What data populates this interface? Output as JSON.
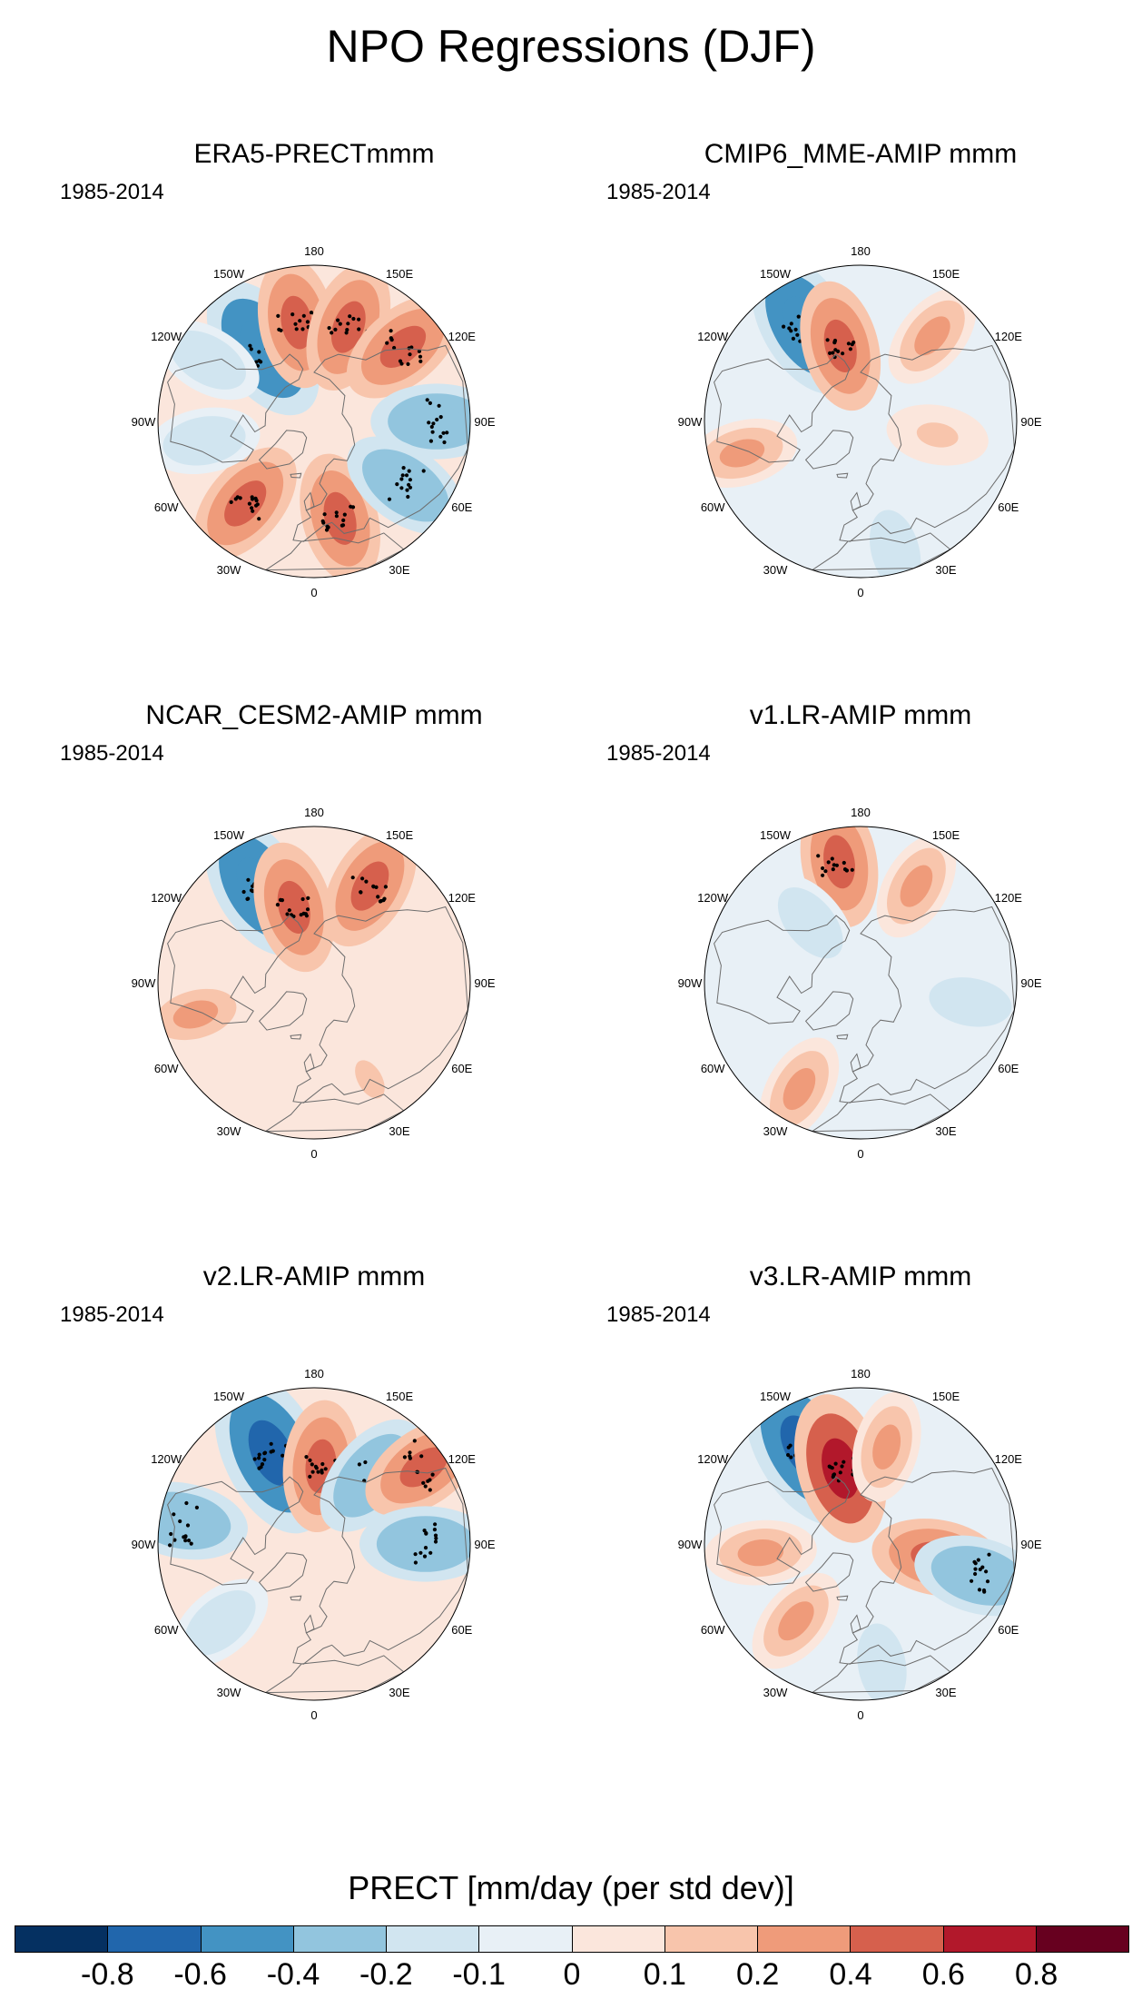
{
  "figure_title": "NPO Regressions (DJF)",
  "lon_labels": [
    "180",
    "150E",
    "120E",
    "90E",
    "60E",
    "30E",
    "0",
    "30W",
    "60W",
    "90W",
    "120W",
    "150W"
  ],
  "panels": [
    {
      "title": "ERA5-PRECTmmm",
      "years": "1985-2014",
      "anomalies": [
        {
          "type": "neg",
          "level": -0.6,
          "lon": -145,
          "lat": 50
        },
        {
          "type": "pos",
          "level": 0.4,
          "lon": -170,
          "lat": 45
        },
        {
          "type": "pos",
          "level": 0.4,
          "lon": 160,
          "lat": 45
        },
        {
          "type": "pos",
          "level": 0.4,
          "lon": 130,
          "lat": 38
        },
        {
          "type": "neg",
          "level": -0.4,
          "lon": 90,
          "lat": 35
        },
        {
          "type": "pos",
          "level": 0.4,
          "lon": -40,
          "lat": 42
        },
        {
          "type": "pos",
          "level": 0.4,
          "lon": 15,
          "lat": 45
        },
        {
          "type": "neg",
          "level": -0.4,
          "lon": 55,
          "lat": 40
        },
        {
          "type": "neg",
          "level": -0.2,
          "lon": -80,
          "lat": 40
        },
        {
          "type": "neg",
          "level": -0.2,
          "lon": -120,
          "lat": 35
        }
      ]
    },
    {
      "title": "CMIP6_MME-AMIP  mmm",
      "years": "1985-2014",
      "anomalies": [
        {
          "type": "neg",
          "level": -0.6,
          "lon": -150,
          "lat": 40
        },
        {
          "type": "pos",
          "level": 0.4,
          "lon": -165,
          "lat": 55
        },
        {
          "type": "pos",
          "level": 0.2,
          "lon": 140,
          "lat": 40
        },
        {
          "type": "pos",
          "level": 0.2,
          "lon": -75,
          "lat": 35
        },
        {
          "type": "pos",
          "level": 0.1,
          "lon": 80,
          "lat": 55
        },
        {
          "type": "neg",
          "level": -0.2,
          "lon": 15,
          "lat": 30
        }
      ]
    },
    {
      "title": "NCAR_CESM2-AMIP  mmm",
      "years": "1985-2014",
      "anomalies": [
        {
          "type": "neg",
          "level": -0.6,
          "lon": -150,
          "lat": 40
        },
        {
          "type": "pos",
          "level": 0.4,
          "lon": -165,
          "lat": 55
        },
        {
          "type": "pos",
          "level": 0.4,
          "lon": 150,
          "lat": 40
        },
        {
          "type": "pos",
          "level": 0.2,
          "lon": -75,
          "lat": 35
        },
        {
          "type": "pos",
          "level": 0.1,
          "lon": 30,
          "lat": 40
        }
      ]
    },
    {
      "title": "v1.LR-AMIP  mmm",
      "years": "1985-2014",
      "anomalies": [
        {
          "type": "pos",
          "level": 0.4,
          "lon": -170,
          "lat": 35
        },
        {
          "type": "pos",
          "level": 0.2,
          "lon": 150,
          "lat": 40
        },
        {
          "type": "neg",
          "level": -0.2,
          "lon": -140,
          "lat": 55
        },
        {
          "type": "pos",
          "level": 0.2,
          "lon": -30,
          "lat": 35
        },
        {
          "type": "neg",
          "level": -0.2,
          "lon": 80,
          "lat": 40
        }
      ]
    },
    {
      "title": "v2.LR-AMIP  mmm",
      "years": "1985-2014",
      "anomalies": [
        {
          "type": "neg",
          "level": -0.8,
          "lon": -155,
          "lat": 45
        },
        {
          "type": "pos",
          "level": 0.4,
          "lon": 175,
          "lat": 55
        },
        {
          "type": "neg",
          "level": -0.4,
          "lon": 140,
          "lat": 50
        },
        {
          "type": "pos",
          "level": 0.4,
          "lon": 125,
          "lat": 30
        },
        {
          "type": "neg",
          "level": -0.4,
          "lon": -100,
          "lat": 30
        },
        {
          "type": "neg",
          "level": -0.4,
          "lon": 90,
          "lat": 40
        },
        {
          "type": "neg",
          "level": -0.2,
          "lon": -50,
          "lat": 35
        }
      ]
    },
    {
      "title": "v3.LR-AMIP  mmm",
      "years": "1985-2014",
      "anomalies": [
        {
          "type": "neg",
          "level": -0.8,
          "lon": -150,
          "lat": 40
        },
        {
          "type": "pos",
          "level": 0.6,
          "lon": -165,
          "lat": 55
        },
        {
          "type": "pos",
          "level": 0.2,
          "lon": 165,
          "lat": 45
        },
        {
          "type": "pos",
          "level": 0.4,
          "lon": 80,
          "lat": 55
        },
        {
          "type": "pos",
          "level": 0.2,
          "lon": -85,
          "lat": 45
        },
        {
          "type": "pos",
          "level": 0.2,
          "lon": -40,
          "lat": 45
        },
        {
          "type": "neg",
          "level": -0.4,
          "lon": 75,
          "lat": 35
        },
        {
          "type": "neg",
          "level": -0.2,
          "lon": 10,
          "lat": 35
        }
      ]
    }
  ],
  "colorbar": {
    "title": "PRECT [mm/day (per std dev)]",
    "colors": [
      "#053061",
      "#2166ac",
      "#4393c3",
      "#92c5de",
      "#d1e5f0",
      "#e8f0f6",
      "#fbe6dc",
      "#f8c5ac",
      "#ef9b7a",
      "#d6604d",
      "#b2182b",
      "#67001f"
    ],
    "tick_labels": [
      "-0.8",
      "-0.6",
      "-0.4",
      "-0.2",
      "-0.1",
      "0",
      "0.1",
      "0.2",
      "0.4",
      "0.6",
      "0.8"
    ]
  }
}
